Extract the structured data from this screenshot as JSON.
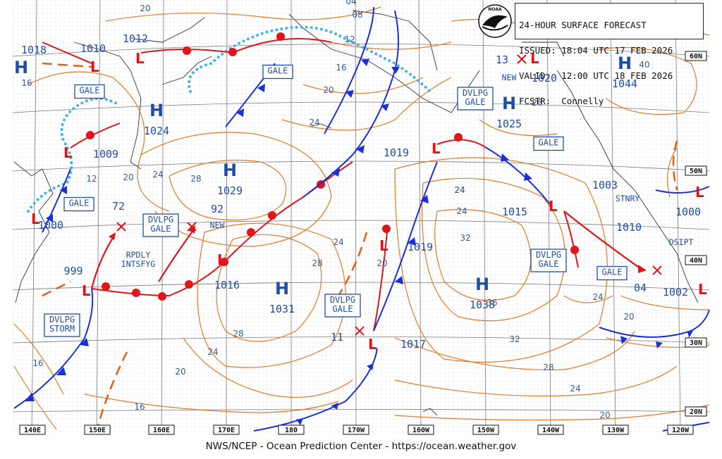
{
  "header": {
    "title": "24-HOUR SURFACE FORECAST",
    "issued": "ISSUED: 18:04 UTC 17 FEB 2026",
    "valid": "VALID:  12:00 UTC 18 FEB 2026",
    "forecaster": "FCSTR:  Connelly"
  },
  "credit": "NWS/NCEP - Ocean Prediction Center - https://ocean.weather.gov",
  "logo_text": "NOAA",
  "colors": {
    "high": "#1e4fa8",
    "low": "#e0141b",
    "isobar": "#e27a28",
    "cold_front": "#1a2fd9",
    "warm_front": "#e0141b",
    "ice": "#44b3e8"
  },
  "lon_labels": [
    "140E",
    "150E",
    "160E",
    "170E",
    "180",
    "170W",
    "160W",
    "150W",
    "140W",
    "130W",
    "120W"
  ],
  "lat_labels": [
    "60N",
    "50N",
    "40N",
    "30N",
    "20N"
  ],
  "highs": [
    {
      "label": "H",
      "pressure": "1024"
    },
    {
      "label": "H",
      "pressure": "1029"
    },
    {
      "label": "H",
      "pressure": "1031"
    },
    {
      "label": "H",
      "pressure": "1038"
    },
    {
      "label": "H",
      "pressure": "1025"
    },
    {
      "label": "H",
      "pressure": "1044"
    },
    {
      "label": "H",
      "pressure": "1018"
    }
  ],
  "pressure_labels": [
    "1010",
    "1012",
    "1009",
    "1000",
    "999",
    "1016",
    "1019",
    "1019",
    "1017",
    "1015",
    "1020",
    "1003",
    "1010",
    "1000",
    "1002",
    "72",
    "92",
    "11",
    "13",
    "04"
  ],
  "boxed_labels": [
    "GALE",
    "GALE",
    "GALE",
    "GALE",
    "GALE",
    "DVLPG GALE",
    "DVLPG STORM",
    "DVLPG GALE",
    "DVLPG GALE",
    "DVLPG GALE"
  ],
  "text_notes": [
    "RPDLY INTSFYG",
    "NEW",
    "NEW",
    "STNRY",
    "DSIPT"
  ],
  "isobar_values": [
    "20",
    "08",
    "04",
    "12",
    "16",
    "16",
    "20",
    "24",
    "24",
    "28",
    "28",
    "24",
    "24",
    "28",
    "32",
    "36",
    "32",
    "28",
    "24",
    "20",
    "16",
    "20",
    "24",
    "28",
    "24",
    "20",
    "16",
    "12",
    "20",
    "24",
    "40",
    "24",
    "20"
  ]
}
